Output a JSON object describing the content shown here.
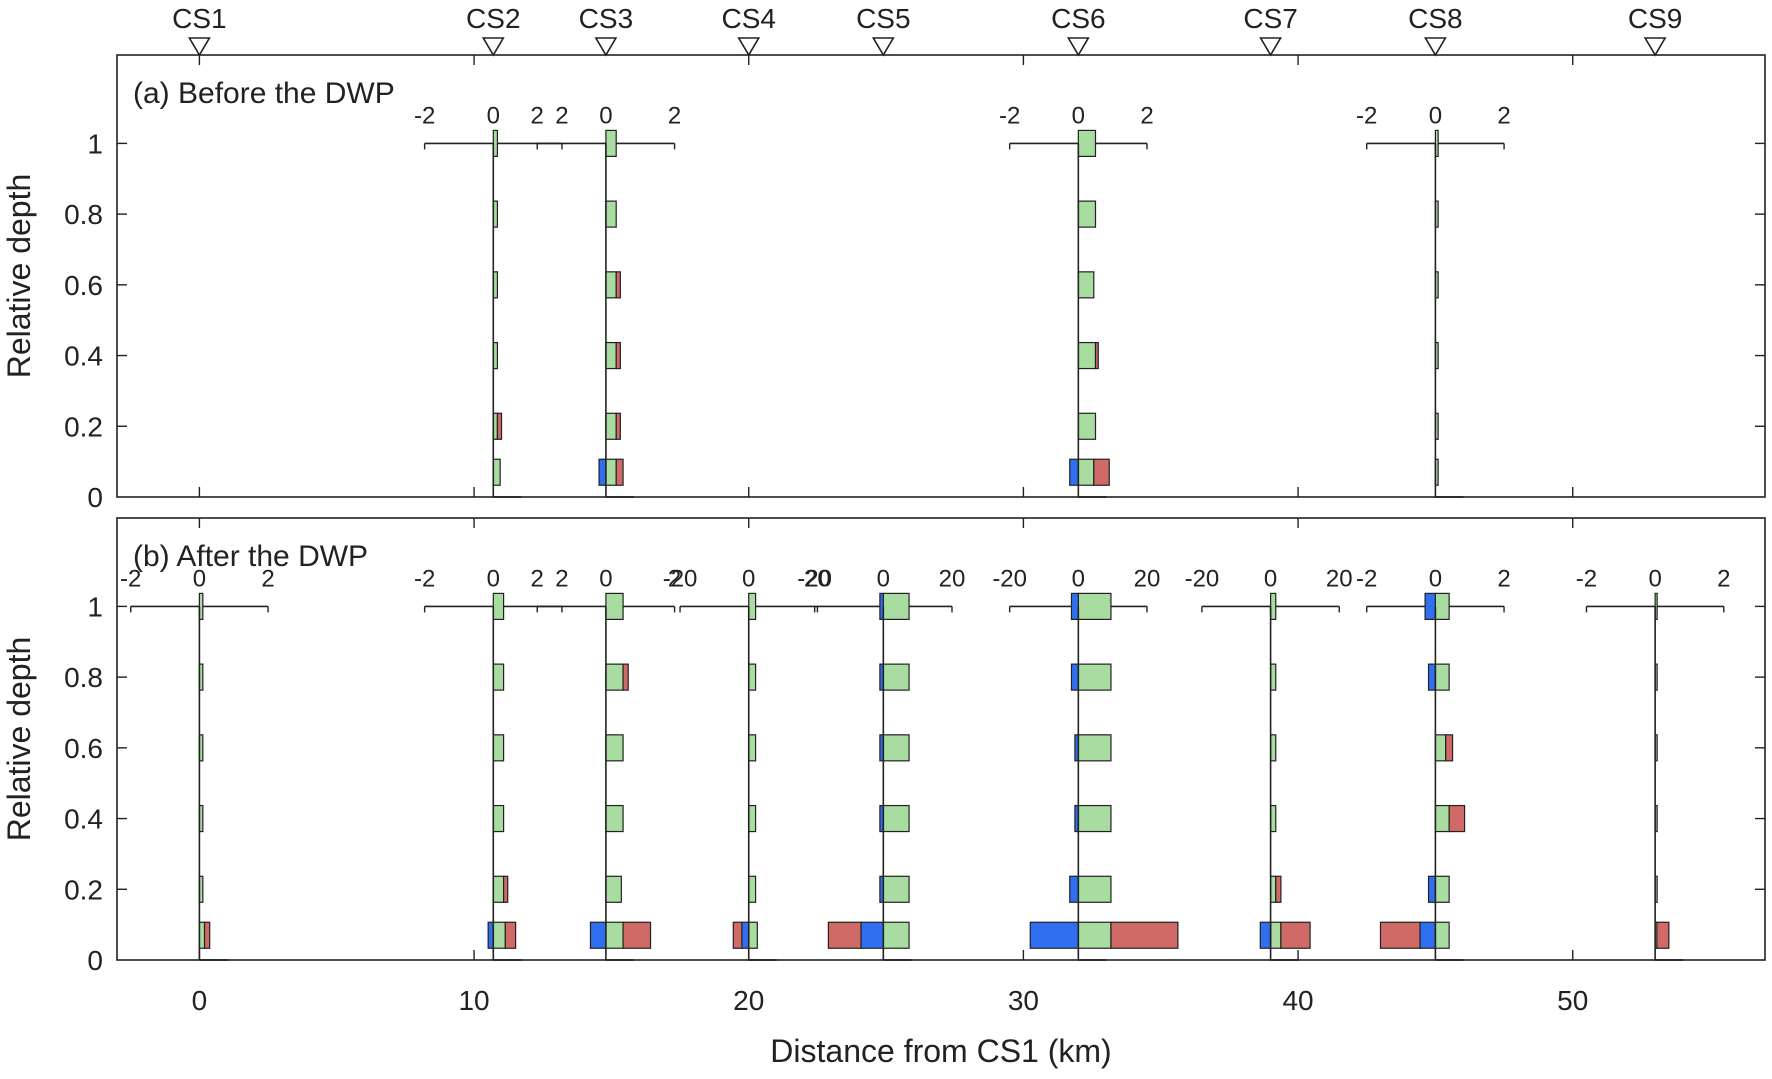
{
  "chart_data": {
    "type": "bar",
    "xlabel": "Distance from CS1 (km)",
    "ylabel": "Relative depth",
    "xlim": [
      -3,
      57
    ],
    "ylim": [
      0,
      1.25
    ],
    "x_ticks": [
      "0",
      "10",
      "20",
      "30",
      "40",
      "50"
    ],
    "y_ticks": [
      "0",
      "0.2",
      "0.4",
      "0.6",
      "0.8",
      "1"
    ],
    "colors": {
      "blue": "#2f6ff0",
      "green": "#a8dca0",
      "red": "#d06a66"
    },
    "cross_sections": [
      {
        "name": "CS1",
        "km": 0
      },
      {
        "name": "CS2",
        "km": 10.7
      },
      {
        "name": "CS3",
        "km": 14.8
      },
      {
        "name": "CS4",
        "km": 20
      },
      {
        "name": "CS5",
        "km": 24.9
      },
      {
        "name": "CS6",
        "km": 32
      },
      {
        "name": "CS7",
        "km": 39
      },
      {
        "name": "CS8",
        "km": 45
      },
      {
        "name": "CS9",
        "km": 53
      }
    ],
    "depths": [
      0.03,
      0.2,
      0.4,
      0.6,
      0.8,
      1.0
    ],
    "panels": [
      {
        "title": "(a) Before the DWP",
        "profiles": [
          {
            "cs": "CS2",
            "scale": 2,
            "tick_labels": [
              "-2",
              "0",
              "2"
            ],
            "green": [
              0.2,
              0.12,
              0.12,
              0.12,
              0.12,
              0.12
            ],
            "blue": [
              0,
              0,
              0,
              0,
              0,
              0
            ],
            "red": [
              0,
              0.12,
              0,
              0,
              0,
              0
            ]
          },
          {
            "cs": "CS3",
            "scale": 2,
            "tick_labels": [
              "2",
              "0",
              "2"
            ],
            "green": [
              0.3,
              0.3,
              0.3,
              0.3,
              0.3,
              0.3
            ],
            "blue": [
              -0.2,
              0,
              0,
              0,
              0,
              0
            ],
            "red": [
              0.2,
              0.12,
              0.12,
              0.12,
              0,
              0
            ]
          },
          {
            "cs": "CS6",
            "scale": 2,
            "tick_labels": [
              "-2",
              "0",
              "2"
            ],
            "green": [
              0.45,
              0.5,
              0.5,
              0.45,
              0.5,
              0.5
            ],
            "blue": [
              -0.25,
              0,
              0,
              0,
              0,
              0
            ],
            "red": [
              0.45,
              0,
              0.08,
              0,
              0,
              0
            ]
          },
          {
            "cs": "CS8",
            "scale": 2,
            "tick_labels": [
              "-2",
              "0",
              "2"
            ],
            "green": [
              0.08,
              0.08,
              0.08,
              0.08,
              0.08,
              0.08
            ],
            "blue": [
              0,
              0,
              0,
              0,
              0,
              0
            ],
            "red": [
              0,
              0,
              0,
              0,
              0,
              0
            ]
          }
        ]
      },
      {
        "title": "(b) After the DWP",
        "profiles": [
          {
            "cs": "CS1",
            "scale": 2,
            "tick_labels": [
              "-2",
              "0",
              "2"
            ],
            "green": [
              0.15,
              0.1,
              0.1,
              0.1,
              0.1,
              0.1
            ],
            "blue": [
              0,
              0,
              0,
              0,
              0,
              0
            ],
            "red": [
              0.15,
              0,
              0,
              0,
              0,
              0
            ]
          },
          {
            "cs": "CS2",
            "scale": 2,
            "tick_labels": [
              "-2",
              "0",
              "2"
            ],
            "green": [
              0.35,
              0.3,
              0.3,
              0.3,
              0.3,
              0.3
            ],
            "blue": [
              -0.15,
              0,
              0,
              0,
              0,
              0
            ],
            "red": [
              0.3,
              0.12,
              0,
              0,
              0,
              0
            ]
          },
          {
            "cs": "CS3",
            "scale": 2,
            "tick_labels": [
              "2",
              "0",
              "2"
            ],
            "green": [
              0.5,
              0.45,
              0.5,
              0.5,
              0.5,
              0.5
            ],
            "blue": [
              -0.45,
              0,
              0,
              0,
              0,
              0
            ],
            "red": [
              0.8,
              0,
              0,
              0,
              0.15,
              0
            ]
          },
          {
            "cs": "CS4",
            "scale": 20,
            "tick_labels": [
              "-20",
              "0",
              "20"
            ],
            "green": [
              2.5,
              2.0,
              2.0,
              2.0,
              2.0,
              2.0
            ],
            "blue": [
              -2.0,
              0,
              0,
              0,
              0,
              0
            ],
            "red": [
              -2.5,
              0,
              0,
              0,
              0,
              0
            ]
          },
          {
            "cs": "CS5",
            "scale": 20,
            "tick_labels": [
              "-20",
              "0",
              "20"
            ],
            "green": [
              7.5,
              7.5,
              7.5,
              7.5,
              7.5,
              7.5
            ],
            "blue": [
              -6.5,
              -1.0,
              -1.0,
              -1.0,
              -1.0,
              -1.0
            ],
            "red": [
              -9.5,
              0,
              0,
              0,
              0,
              0
            ]
          },
          {
            "cs": "CS6",
            "scale": 20,
            "tick_labels": [
              "-20",
              "0",
              "20"
            ],
            "green": [
              9.5,
              9.5,
              9.5,
              9.5,
              9.5,
              9.5
            ],
            "blue": [
              -14,
              -2.5,
              -1.0,
              -1.0,
              -2.0,
              -2.0
            ],
            "red": [
              19.5,
              0,
              0,
              0,
              0,
              0
            ]
          },
          {
            "cs": "CS7",
            "scale": 20,
            "tick_labels": [
              "-20",
              "0",
              "20"
            ],
            "green": [
              3.0,
              1.5,
              1.5,
              1.5,
              1.5,
              1.5
            ],
            "blue": [
              -3.0,
              0,
              0,
              0,
              0,
              0
            ],
            "red": [
              8.5,
              1.5,
              0,
              0,
              0,
              0
            ]
          },
          {
            "cs": "CS8",
            "scale": 2,
            "tick_labels": [
              "-2",
              "0",
              "2"
            ],
            "green": [
              0.4,
              0.4,
              0.4,
              0.3,
              0.4,
              0.4
            ],
            "blue": [
              -0.45,
              -0.2,
              0,
              0,
              -0.2,
              -0.3
            ],
            "red": [
              -1.15,
              0,
              0.45,
              0.2,
              0,
              0
            ]
          },
          {
            "cs": "CS9",
            "scale": 2,
            "tick_labels": [
              "-2",
              "0",
              "2"
            ],
            "green": [
              0.05,
              0.05,
              0.05,
              0.05,
              0.05,
              0.05
            ],
            "blue": [
              0,
              0,
              0,
              0,
              0,
              0
            ],
            "red": [
              0.35,
              0,
              0,
              0,
              0,
              0
            ]
          }
        ]
      }
    ]
  }
}
